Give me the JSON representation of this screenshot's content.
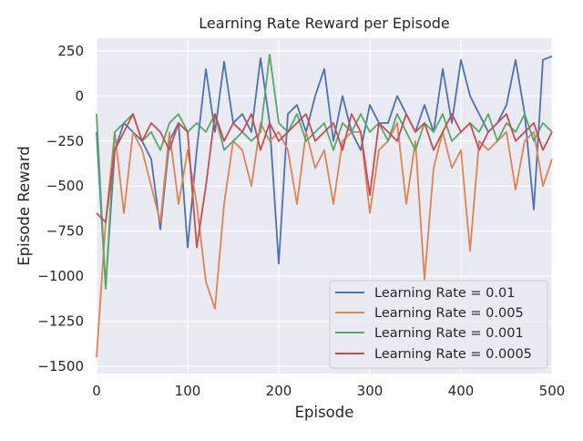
{
  "chart_data": {
    "type": "line",
    "title": "Learning Rate Reward per Episode",
    "xlabel": "Episode",
    "ylabel": "Episode Reward",
    "xlim": [
      0,
      500
    ],
    "ylim": [
      -1540,
      320
    ],
    "x_ticks": [
      0,
      100,
      200,
      300,
      400,
      500
    ],
    "y_ticks": [
      250,
      0,
      -250,
      -500,
      -750,
      -1000,
      -1250,
      -1500
    ],
    "x_tick_labels": [
      "0",
      "100",
      "200",
      "300",
      "400",
      "500"
    ],
    "y_tick_labels": [
      "250",
      "0",
      "−250",
      "−500",
      "−750",
      "−1000",
      "−1250",
      "−1500"
    ],
    "grid": true,
    "legend_position": "lower-right",
    "background_color": "#eaeaf2",
    "grid_color": "#ffffff",
    "x": [
      0,
      10,
      20,
      30,
      40,
      50,
      60,
      70,
      80,
      90,
      100,
      110,
      120,
      130,
      140,
      150,
      160,
      170,
      180,
      190,
      200,
      210,
      220,
      230,
      240,
      250,
      260,
      270,
      280,
      290,
      300,
      310,
      320,
      330,
      340,
      350,
      360,
      370,
      380,
      390,
      400,
      410,
      420,
      430,
      440,
      450,
      460,
      470,
      480,
      490,
      500
    ],
    "series": [
      {
        "name": "Learning Rate = 0.01",
        "color": "#4c72b0",
        "values": [
          -200,
          -1060,
          -300,
          -150,
          -200,
          -250,
          -350,
          -740,
          -250,
          -150,
          -840,
          -300,
          150,
          -200,
          190,
          -150,
          -100,
          -200,
          210,
          -150,
          -930,
          -100,
          -50,
          -200,
          0,
          150,
          -250,
          0,
          -200,
          -300,
          -50,
          -150,
          -150,
          0,
          -100,
          -200,
          -50,
          -200,
          150,
          -150,
          200,
          0,
          -100,
          -200,
          -150,
          -50,
          200,
          -100,
          -630,
          200,
          220
        ]
      },
      {
        "name": "Learning Rate = 0.005",
        "color": "#dd8452",
        "values": [
          -1450,
          -700,
          -200,
          -650,
          -200,
          -300,
          -500,
          -700,
          -200,
          -600,
          -300,
          -600,
          -1030,
          -1180,
          -600,
          -250,
          -300,
          -500,
          -150,
          -250,
          -200,
          -300,
          -600,
          -200,
          -400,
          -300,
          -600,
          -250,
          -200,
          -200,
          -650,
          -300,
          -250,
          -150,
          -600,
          -250,
          -1020,
          -400,
          -200,
          -400,
          -300,
          -860,
          -250,
          -300,
          -250,
          -200,
          -520,
          -250,
          -200,
          -500,
          -350
        ]
      },
      {
        "name": "Learning Rate = 0.001",
        "color": "#55a868",
        "values": [
          -100,
          -1070,
          -200,
          -150,
          -100,
          -250,
          -200,
          -300,
          -150,
          -100,
          -200,
          -150,
          -200,
          -100,
          -300,
          -250,
          -200,
          -250,
          -200,
          230,
          -150,
          -200,
          -100,
          -250,
          -200,
          -150,
          -300,
          -150,
          -200,
          -100,
          -200,
          -150,
          -250,
          -100,
          -200,
          -300,
          -150,
          -200,
          -100,
          -250,
          -200,
          -150,
          -200,
          -100,
          -250,
          -150,
          -200,
          -100,
          -250,
          -150,
          -200
        ]
      },
      {
        "name": "Learning Rate = 0.0005",
        "color": "#c44e52",
        "values": [
          -650,
          -700,
          -300,
          -200,
          -100,
          -250,
          -150,
          -200,
          -300,
          -150,
          -200,
          -840,
          -500,
          -100,
          -250,
          -150,
          -200,
          -100,
          -300,
          -150,
          -250,
          -200,
          -150,
          -100,
          -250,
          -200,
          -150,
          -300,
          -100,
          -200,
          -550,
          -150,
          -200,
          -250,
          -100,
          -200,
          -150,
          -300,
          -200,
          -100,
          -200,
          -150,
          -300,
          -200,
          -150,
          -100,
          -250,
          -200,
          -150,
          -300,
          -200
        ]
      }
    ]
  }
}
